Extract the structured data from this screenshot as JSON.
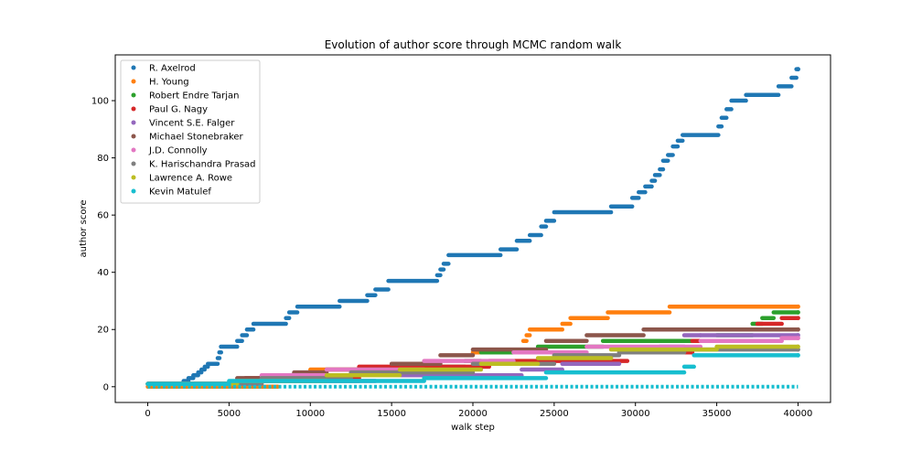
{
  "chart_data": {
    "type": "scatter",
    "title": "Evolution of author score through MCMC random walk",
    "xlabel": "walk step",
    "ylabel": "author score",
    "xlim": [
      -2000,
      42000
    ],
    "ylim": [
      -5.5,
      116
    ],
    "xticks": [
      0,
      5000,
      10000,
      15000,
      20000,
      25000,
      30000,
      35000,
      40000
    ],
    "yticks": [
      0,
      20,
      40,
      60,
      80,
      100
    ],
    "legend_position": "upper-left",
    "grid": false,
    "series": [
      {
        "name": "R. Axelrod",
        "color": "#1f77b4",
        "steps": [
          [
            0,
            1
          ],
          [
            1000,
            1
          ],
          [
            2200,
            2
          ],
          [
            2500,
            3
          ],
          [
            2800,
            4
          ],
          [
            3100,
            5
          ],
          [
            3300,
            6
          ],
          [
            3500,
            7
          ],
          [
            3700,
            8
          ],
          [
            4300,
            10
          ],
          [
            4400,
            12
          ],
          [
            4500,
            14
          ],
          [
            5500,
            16
          ],
          [
            5800,
            18
          ],
          [
            6100,
            20
          ],
          [
            6500,
            22
          ],
          [
            8500,
            24
          ],
          [
            8700,
            26
          ],
          [
            9200,
            28
          ],
          [
            11800,
            30
          ],
          [
            13500,
            32
          ],
          [
            14000,
            34
          ],
          [
            14800,
            37
          ],
          [
            17800,
            39
          ],
          [
            18000,
            41
          ],
          [
            18200,
            43
          ],
          [
            18500,
            46
          ],
          [
            21700,
            48
          ],
          [
            22700,
            51
          ],
          [
            23500,
            53
          ],
          [
            24200,
            56
          ],
          [
            24500,
            58
          ],
          [
            25000,
            61
          ],
          [
            28500,
            63
          ],
          [
            29800,
            66
          ],
          [
            30200,
            68
          ],
          [
            30600,
            70
          ],
          [
            31000,
            72
          ],
          [
            31200,
            74
          ],
          [
            31500,
            76
          ],
          [
            31700,
            79
          ],
          [
            32000,
            81
          ],
          [
            32300,
            84
          ],
          [
            32600,
            86
          ],
          [
            32900,
            88
          ],
          [
            35100,
            91
          ],
          [
            35300,
            94
          ],
          [
            35600,
            97
          ],
          [
            35900,
            100
          ],
          [
            36800,
            102
          ],
          [
            38800,
            105
          ],
          [
            39600,
            108
          ],
          [
            39900,
            111
          ],
          [
            40000,
            111
          ]
        ]
      },
      {
        "name": "H. Young",
        "color": "#ff7f0e",
        "steps": [
          [
            0,
            0
          ],
          [
            8000,
            2
          ],
          [
            10000,
            6
          ],
          [
            20000,
            12
          ],
          [
            23100,
            16
          ],
          [
            23300,
            18
          ],
          [
            23500,
            20
          ],
          [
            25500,
            22
          ],
          [
            26000,
            24
          ],
          [
            28300,
            26
          ],
          [
            32100,
            28
          ],
          [
            40000,
            28
          ]
        ]
      },
      {
        "name": "Robert Endre Tarjan",
        "color": "#2ca02c",
        "steps": [
          [
            0,
            1
          ],
          [
            7000,
            2
          ],
          [
            13000,
            5
          ],
          [
            16500,
            7
          ],
          [
            19500,
            9
          ],
          [
            20500,
            12
          ],
          [
            24000,
            14
          ],
          [
            28000,
            16
          ],
          [
            35000,
            18
          ],
          [
            37200,
            22
          ],
          [
            37800,
            24
          ],
          [
            38500,
            26
          ],
          [
            40000,
            26
          ]
        ]
      },
      {
        "name": "Paul G. Nagy",
        "color": "#d62728",
        "steps": [
          [
            0,
            1
          ],
          [
            6000,
            3
          ],
          [
            13000,
            7
          ],
          [
            21000,
            9
          ],
          [
            29500,
            12
          ],
          [
            33500,
            16
          ],
          [
            37500,
            22
          ],
          [
            39000,
            24
          ],
          [
            40000,
            24
          ]
        ]
      },
      {
        "name": "Vincent S.E. Falger",
        "color": "#9467bd",
        "steps": [
          [
            0,
            1
          ],
          [
            6000,
            2
          ],
          [
            14000,
            4
          ],
          [
            23000,
            6
          ],
          [
            25500,
            8
          ],
          [
            29000,
            12
          ],
          [
            31500,
            14
          ],
          [
            33000,
            18
          ],
          [
            34000,
            18
          ],
          [
            40000,
            18
          ]
        ]
      },
      {
        "name": "Michael Stonebraker",
        "color": "#8c564b",
        "steps": [
          [
            0,
            1
          ],
          [
            5500,
            3
          ],
          [
            9000,
            5
          ],
          [
            11000,
            6
          ],
          [
            15000,
            8
          ],
          [
            18000,
            11
          ],
          [
            20000,
            13
          ],
          [
            24500,
            16
          ],
          [
            27000,
            18
          ],
          [
            30500,
            20
          ],
          [
            40000,
            20
          ]
        ]
      },
      {
        "name": "J.D. Connolly",
        "color": "#e377c2",
        "steps": [
          [
            0,
            1
          ],
          [
            7000,
            4
          ],
          [
            11000,
            6
          ],
          [
            17000,
            9
          ],
          [
            22500,
            12
          ],
          [
            27000,
            14
          ],
          [
            34000,
            16
          ],
          [
            39000,
            17
          ],
          [
            40000,
            17
          ]
        ]
      },
      {
        "name": "K. Harischandra Prasad",
        "color": "#7f7f7f",
        "steps": [
          [
            0,
            1
          ],
          [
            7000,
            3
          ],
          [
            12500,
            5
          ],
          [
            20000,
            8
          ],
          [
            25000,
            11
          ],
          [
            29000,
            12
          ],
          [
            33000,
            13
          ],
          [
            40000,
            13
          ]
        ]
      },
      {
        "name": "Lawrence A. Rowe",
        "color": "#bcbd22",
        "steps": [
          [
            0,
            1
          ],
          [
            5500,
            2
          ],
          [
            11000,
            4
          ],
          [
            15500,
            6
          ],
          [
            20500,
            8
          ],
          [
            24000,
            10
          ],
          [
            28500,
            13
          ],
          [
            35000,
            14
          ],
          [
            40000,
            14
          ]
        ]
      },
      {
        "name": "Kevin Matulef",
        "color": "#17becf",
        "steps": [
          [
            0,
            1
          ],
          [
            5000,
            2
          ],
          [
            17000,
            3
          ],
          [
            24500,
            5
          ],
          [
            33000,
            7
          ],
          [
            33600,
            11
          ],
          [
            40000,
            11
          ]
        ],
        "baseline": {
          "value": 0,
          "xrange": [
            0,
            40000
          ]
        }
      }
    ]
  }
}
